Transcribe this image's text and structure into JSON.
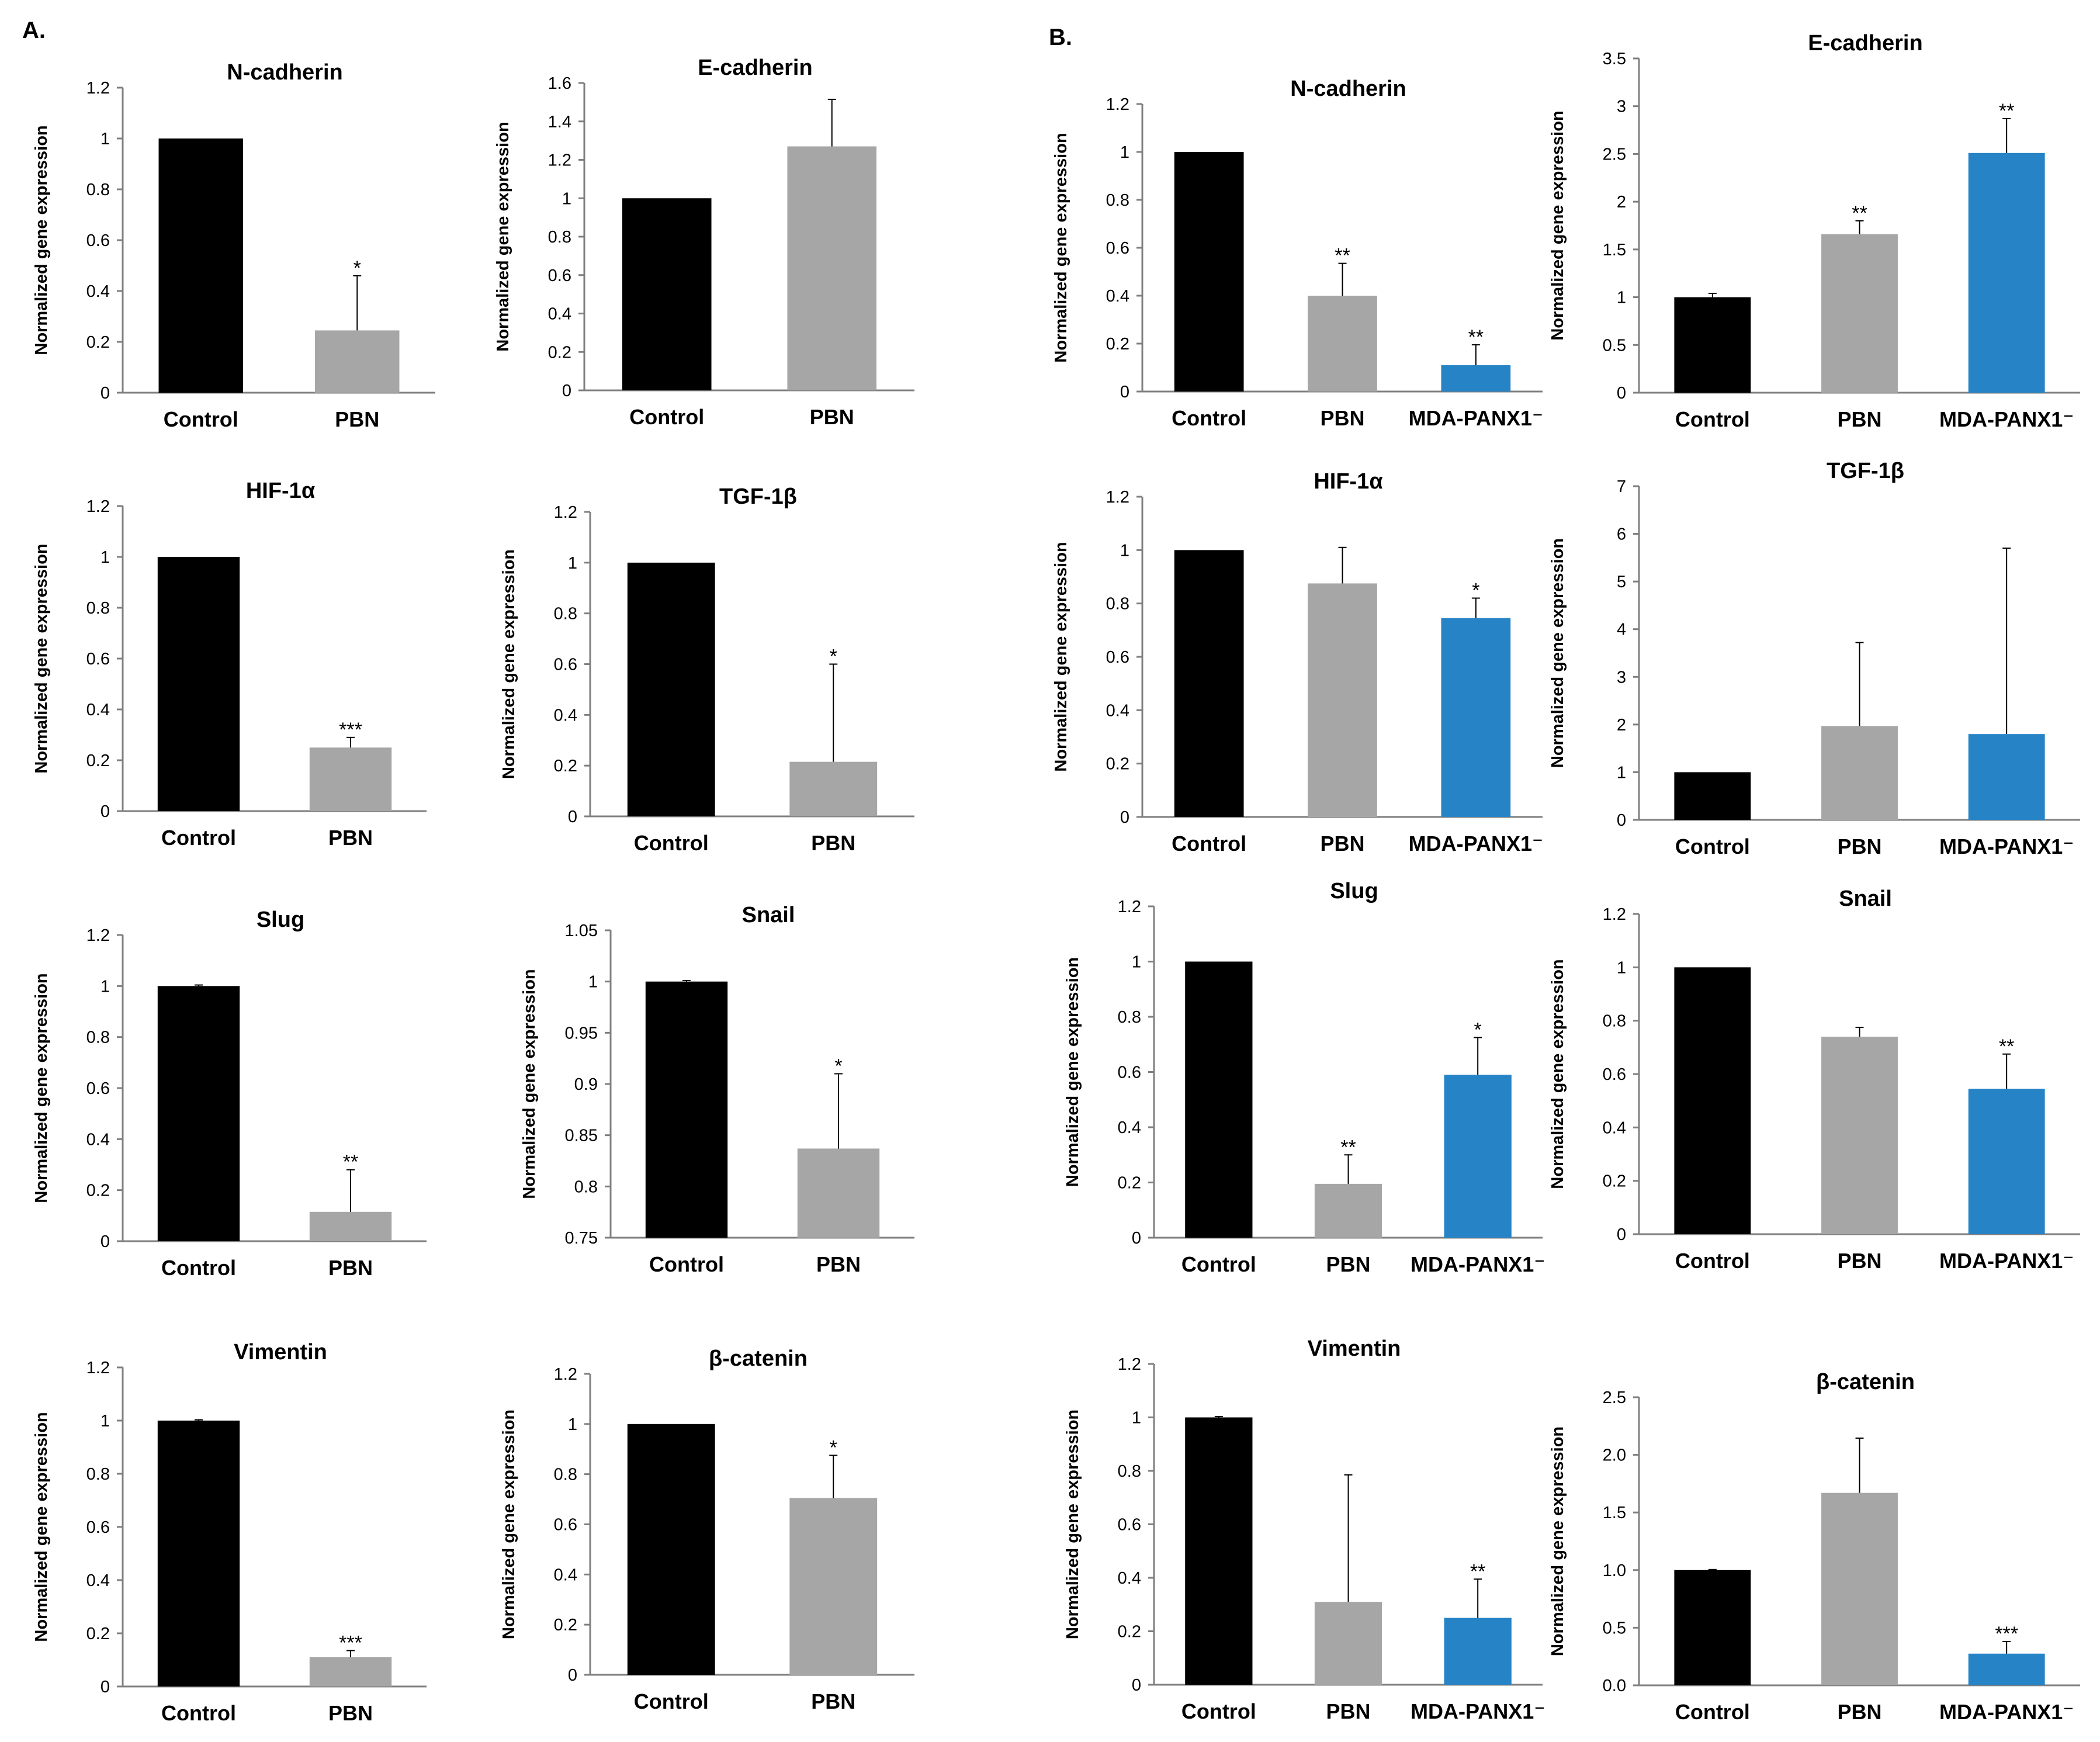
{
  "figure": {
    "panel_a_label": "A.",
    "panel_b_label": "B."
  },
  "chart_data": [
    {
      "panel": "A",
      "type": "bar",
      "title": "N-cadherin",
      "ylabel": "Normalized gene expression",
      "ylim": [
        0,
        1.2
      ],
      "yticks": [
        "0",
        "0.2",
        "0.4",
        "0.6",
        "0.8",
        "1",
        "1.2"
      ],
      "categories": [
        "Control",
        "PBN"
      ],
      "values": [
        1.0,
        0.245
      ],
      "errors": [
        0,
        0.215
      ],
      "significance": [
        "",
        "*"
      ],
      "colors": [
        "#000000",
        "#a6a6a6"
      ]
    },
    {
      "panel": "A",
      "type": "bar",
      "title": "E-cadherin",
      "ylabel": "Normalized gene expression",
      "ylim": [
        0,
        1.6
      ],
      "yticks": [
        "0",
        "0.2",
        "0.4",
        "0.6",
        "0.8",
        "1",
        "1.2",
        "1.4",
        "1.6"
      ],
      "categories": [
        "Control",
        "PBN"
      ],
      "values": [
        1.0,
        1.27
      ],
      "errors": [
        0,
        0.245
      ],
      "significance": [
        "",
        ""
      ],
      "colors": [
        "#000000",
        "#a6a6a6"
      ]
    },
    {
      "panel": "B",
      "type": "bar",
      "title": "N-cadherin",
      "ylabel": "Normalized gene expression",
      "ylim": [
        0,
        1.2
      ],
      "yticks": [
        "0",
        "0.2",
        "0.4",
        "0.6",
        "0.8",
        "1",
        "1.2"
      ],
      "categories": [
        "Control",
        "PBN",
        "MDA-PANX1⁻"
      ],
      "values": [
        1.0,
        0.4,
        0.11
      ],
      "errors": [
        0,
        0.135,
        0.085
      ],
      "significance": [
        "",
        "**",
        "**"
      ],
      "colors": [
        "#000000",
        "#a6a6a6",
        "#2683c6"
      ]
    },
    {
      "panel": "B",
      "type": "bar",
      "title": "E-cadherin",
      "ylabel": "Normalized gene expression",
      "ylim": [
        0,
        3.5
      ],
      "yticks": [
        "0",
        "0.5",
        "1",
        "1.5",
        "2",
        "2.5",
        "3",
        "3.5"
      ],
      "categories": [
        "Control",
        "PBN",
        "MDA-PANX1⁻"
      ],
      "values": [
        1.0,
        1.66,
        2.51
      ],
      "errors": [
        0.04,
        0.14,
        0.36
      ],
      "significance": [
        "",
        "**",
        "**"
      ],
      "colors": [
        "#000000",
        "#a6a6a6",
        "#2683c6"
      ]
    },
    {
      "panel": "A",
      "type": "bar",
      "title": "HIF-1α",
      "ylabel": "Normalized gene expression",
      "ylim": [
        0,
        1.2
      ],
      "yticks": [
        "0",
        "0.2",
        "0.4",
        "0.6",
        "0.8",
        "1",
        "1.2"
      ],
      "categories": [
        "Control",
        "PBN"
      ],
      "values": [
        1.0,
        0.25
      ],
      "errors": [
        0,
        0.04
      ],
      "significance": [
        "",
        "***"
      ],
      "colors": [
        "#000000",
        "#a6a6a6"
      ]
    },
    {
      "panel": "A",
      "type": "bar",
      "title": "TGF-1β",
      "ylabel": "Normalized gene expression",
      "ylim": [
        0,
        1.2
      ],
      "yticks": [
        "0",
        "0.2",
        "0.4",
        "0.6",
        "0.8",
        "1",
        "1.2"
      ],
      "categories": [
        "Control",
        "PBN"
      ],
      "values": [
        1.0,
        0.215
      ],
      "errors": [
        0,
        0.385
      ],
      "significance": [
        "",
        "*"
      ],
      "colors": [
        "#000000",
        "#a6a6a6"
      ]
    },
    {
      "panel": "B",
      "type": "bar",
      "title": "HIF-1α",
      "ylabel": "Normalized gene expression",
      "ylim": [
        0,
        1.2
      ],
      "yticks": [
        "0",
        "0.2",
        "0.4",
        "0.6",
        "0.8",
        "1",
        "1.2"
      ],
      "categories": [
        "Control",
        "PBN",
        "MDA-PANX1⁻"
      ],
      "values": [
        1.0,
        0.875,
        0.745
      ],
      "errors": [
        0,
        0.135,
        0.075
      ],
      "significance": [
        "",
        "",
        "*"
      ],
      "colors": [
        "#000000",
        "#a6a6a6",
        "#2683c6"
      ]
    },
    {
      "panel": "B",
      "type": "bar",
      "title": "TGF-1β",
      "ylabel": "Normalized gene expression",
      "ylim": [
        0,
        7
      ],
      "yticks": [
        "0",
        "1",
        "2",
        "3",
        "4",
        "5",
        "6",
        "7"
      ],
      "categories": [
        "Control",
        "PBN",
        "MDA-PANX1⁻"
      ],
      "values": [
        1.0,
        1.97,
        1.8
      ],
      "errors": [
        0,
        1.75,
        3.9
      ],
      "significance": [
        "",
        "",
        ""
      ],
      "colors": [
        "#000000",
        "#a6a6a6",
        "#2683c6"
      ]
    },
    {
      "panel": "A",
      "type": "bar",
      "title": "Slug",
      "ylabel": "Normalized gene expression",
      "ylim": [
        0,
        1.2
      ],
      "yticks": [
        "0",
        "0.2",
        "0.4",
        "0.6",
        "0.8",
        "1",
        "1.2"
      ],
      "categories": [
        "Control",
        "PBN"
      ],
      "values": [
        1.0,
        0.115
      ],
      "errors": [
        0.004,
        0.165
      ],
      "significance": [
        "",
        "**"
      ],
      "colors": [
        "#000000",
        "#a6a6a6"
      ]
    },
    {
      "panel": "A",
      "type": "bar",
      "title": "Snail",
      "ylabel": "Normalized gene expression",
      "ylim": [
        0.75,
        1.05
      ],
      "yticks": [
        "0.75",
        "0.8",
        "0.85",
        "0.9",
        "0.95",
        "1",
        "1.05"
      ],
      "categories": [
        "Control",
        "PBN"
      ],
      "values": [
        1.0,
        0.837
      ],
      "errors": [
        0.001,
        0.073
      ],
      "significance": [
        "",
        "*"
      ],
      "colors": [
        "#000000",
        "#a6a6a6"
      ]
    },
    {
      "panel": "B",
      "type": "bar",
      "title": "Slug",
      "ylabel": "Normalized gene expression",
      "ylim": [
        0,
        1.2
      ],
      "yticks": [
        "0",
        "0.2",
        "0.4",
        "0.6",
        "0.8",
        "1",
        "1.2"
      ],
      "categories": [
        "Control",
        "PBN",
        "MDA-PANX1⁻"
      ],
      "values": [
        1.0,
        0.195,
        0.59
      ],
      "errors": [
        0,
        0.105,
        0.135
      ],
      "significance": [
        "",
        "**",
        "*"
      ],
      "colors": [
        "#000000",
        "#a6a6a6",
        "#2683c6"
      ]
    },
    {
      "panel": "B",
      "type": "bar",
      "title": "Snail",
      "ylabel": "Normalized gene expression",
      "ylim": [
        0,
        1.2
      ],
      "yticks": [
        "0",
        "0.2",
        "0.4",
        "0.6",
        "0.8",
        "1",
        "1.2"
      ],
      "categories": [
        "Control",
        "PBN",
        "MDA-PANX1⁻"
      ],
      "values": [
        1.0,
        0.74,
        0.545
      ],
      "errors": [
        0,
        0.035,
        0.13
      ],
      "significance": [
        "",
        "",
        "**"
      ],
      "colors": [
        "#000000",
        "#a6a6a6",
        "#2683c6"
      ]
    },
    {
      "panel": "A",
      "type": "bar",
      "title": "Vimentin",
      "ylabel": "Normalized gene expression",
      "ylim": [
        0,
        1.2
      ],
      "yticks": [
        "0",
        "0.2",
        "0.4",
        "0.6",
        "0.8",
        "1",
        "1.2"
      ],
      "categories": [
        "Control",
        "PBN"
      ],
      "values": [
        1.0,
        0.11
      ],
      "errors": [
        0.003,
        0.025
      ],
      "significance": [
        "",
        "***"
      ],
      "colors": [
        "#000000",
        "#a6a6a6"
      ]
    },
    {
      "panel": "A",
      "type": "bar",
      "title": "β-catenin",
      "ylabel": "Normalized gene expression",
      "ylim": [
        0,
        1.2
      ],
      "yticks": [
        "0",
        "0.2",
        "0.4",
        "0.6",
        "0.8",
        "1",
        "1.2"
      ],
      "categories": [
        "Control",
        "PBN"
      ],
      "values": [
        1.0,
        0.705
      ],
      "errors": [
        0,
        0.17
      ],
      "significance": [
        "",
        "*"
      ],
      "colors": [
        "#000000",
        "#a6a6a6"
      ]
    },
    {
      "panel": "B",
      "type": "bar",
      "title": "Vimentin",
      "ylabel": "Normalized gene expression",
      "ylim": [
        0,
        1.2
      ],
      "yticks": [
        "0",
        "0.2",
        "0.4",
        "0.6",
        "0.8",
        "1",
        "1.2"
      ],
      "categories": [
        "Control",
        "PBN",
        "MDA-PANX1⁻"
      ],
      "values": [
        1.0,
        0.31,
        0.25
      ],
      "errors": [
        0.003,
        0.475,
        0.145
      ],
      "significance": [
        "",
        "",
        "**"
      ],
      "colors": [
        "#000000",
        "#a6a6a6",
        "#2683c6"
      ]
    },
    {
      "panel": "B",
      "type": "bar",
      "title": "β-catenin",
      "ylabel": "Normalized gene expression",
      "ylim": [
        0,
        2.5
      ],
      "yticks": [
        "0.0",
        "0.5",
        "1.0",
        "1.5",
        "2.0",
        "2.5"
      ],
      "categories": [
        "Control",
        "PBN",
        "MDA-PANX1⁻"
      ],
      "values": [
        1.0,
        1.67,
        0.275
      ],
      "errors": [
        0.005,
        0.475,
        0.105
      ],
      "significance": [
        "",
        "",
        "***"
      ],
      "colors": [
        "#000000",
        "#a6a6a6",
        "#2683c6"
      ]
    }
  ]
}
